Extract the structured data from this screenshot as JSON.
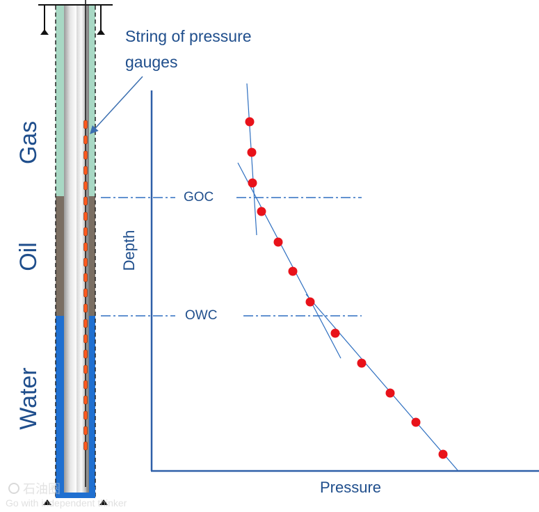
{
  "callout": {
    "line1": "String of pressure",
    "line2": "gauges"
  },
  "zones": {
    "gas": "Gas",
    "oil": "Oil",
    "water": "Water"
  },
  "contacts": {
    "goc": "GOC",
    "owc": "OWC"
  },
  "axes": {
    "y": "Depth",
    "x": "Pressure"
  },
  "watermark": {
    "logo_text": "石油圈",
    "tagline": "Go with independent thinker"
  },
  "colors": {
    "gas": "#a8d8c4",
    "oil": "#7a6e62",
    "water": "#1f6fd0",
    "axis": "#2e5fa8",
    "label": "#1f4e8c",
    "gauge": "#ff5a1f",
    "point": "#e8121a",
    "trend": "#2e6fc0"
  },
  "chart_data": {
    "type": "scatter",
    "x_label": "Pressure",
    "y_label": "Depth",
    "zones": [
      "Gas",
      "Oil",
      "Water"
    ],
    "contacts": [
      "GOC",
      "OWC"
    ],
    "points": [
      {
        "zone": "Gas"
      },
      {
        "zone": "Gas"
      },
      {
        "zone": "Gas"
      },
      {
        "zone": "Oil"
      },
      {
        "zone": "Oil"
      },
      {
        "zone": "Oil"
      },
      {
        "zone": "Oil"
      },
      {
        "zone": "Water"
      },
      {
        "zone": "Water"
      },
      {
        "zone": "Water"
      },
      {
        "zone": "Water"
      },
      {
        "zone": "Water"
      }
    ]
  }
}
